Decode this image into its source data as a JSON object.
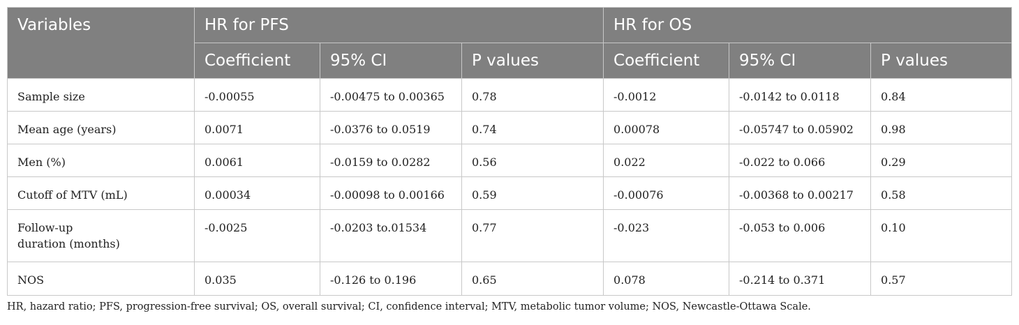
{
  "header": {
    "variables": "Variables",
    "group_pfs": "HR for PFS",
    "group_os": "HR for OS",
    "sub": {
      "pfs_coef": "Coefficient",
      "pfs_ci": "95% CI",
      "pfs_p": "P values",
      "os_coef": "Coefficient",
      "os_ci": "95% CI",
      "os_p": "P values"
    }
  },
  "rows": [
    {
      "variable": "Sample size",
      "pfs_coef": "-0.00055",
      "pfs_ci": "-0.00475 to 0.00365",
      "pfs_p": "0.78",
      "os_coef": "-0.0012",
      "os_ci": "-0.0142 to 0.0118",
      "os_p": "0.84"
    },
    {
      "variable": "Mean age (years)",
      "pfs_coef": "0.0071",
      "pfs_ci": "-0.0376 to 0.0519",
      "pfs_p": "0.74",
      "os_coef": "0.00078",
      "os_ci": "-0.05747 to 0.05902",
      "os_p": "0.98"
    },
    {
      "variable": "Men (%)",
      "pfs_coef": "0.0061",
      "pfs_ci": "-0.0159 to 0.0282",
      "pfs_p": "0.56",
      "os_coef": "0.022",
      "os_ci": "-0.022 to 0.066",
      "os_p": "0.29"
    },
    {
      "variable": "Cutoff of MTV (mL)",
      "pfs_coef": "0.00034",
      "pfs_ci": "-0.00098 to 0.00166",
      "pfs_p": "0.59",
      "os_coef": "-0.00076",
      "os_ci": "-0.00368 to 0.00217",
      "os_p": "0.58"
    },
    {
      "variable_line1": "Follow-up",
      "variable_line2": "duration (months)",
      "pfs_coef": "-0.0025",
      "pfs_ci": "-0.0203 to.01534",
      "pfs_p": "0.77",
      "os_coef": "-0.023",
      "os_ci": "-0.053 to 0.006",
      "os_p": "0.10"
    },
    {
      "variable": "NOS",
      "pfs_coef": "0.035",
      "pfs_ci": "-0.126 to 0.196",
      "pfs_p": "0.65",
      "os_coef": "0.078",
      "os_ci": "-0.214 to 0.371",
      "os_p": "0.57"
    }
  ],
  "footnote": "HR, hazard ratio; PFS, progression-free survival; OS, overall survival; CI, confidence interval; MTV, metabolic tumor volume; NOS, Newcastle-Ottawa Scale."
}
